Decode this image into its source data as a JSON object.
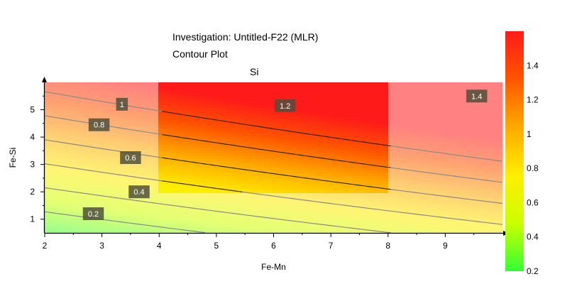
{
  "header": {
    "title_line1": "Investigation: Untitled-F22 (MLR)",
    "title_line2": "Contour Plot"
  },
  "chart_data": {
    "type": "contour",
    "title": "Investigation: Untitled-F22 (MLR) Contour Plot",
    "subtitle": "Si",
    "xlabel": "Fe-Mn",
    "ylabel": "Fe-Si",
    "xlim": [
      2,
      10
    ],
    "ylim": [
      0.5,
      6
    ],
    "x_ticks": [
      2,
      3,
      4,
      5,
      6,
      7,
      8,
      9
    ],
    "y_ticks": [
      1,
      2,
      3,
      4,
      5
    ],
    "contour_levels": [
      0.2,
      0.4,
      0.6,
      0.8,
      1.0,
      1.2,
      1.4
    ],
    "contour_labels": [
      {
        "text": "0.2",
        "x": 2.85,
        "y": 1.2
      },
      {
        "text": "0.4",
        "x": 3.65,
        "y": 2.0
      },
      {
        "text": "0.6",
        "x": 3.5,
        "y": 3.25
      },
      {
        "text": "0.8",
        "x": 2.95,
        "y": 4.45
      },
      {
        "text": "1",
        "x": 3.35,
        "y": 5.2
      },
      {
        "text": "1.2",
        "x": 6.2,
        "y": 5.15
      },
      {
        "text": "1.4",
        "x": 9.55,
        "y": 5.5
      }
    ],
    "highlighted_region": {
      "x_range": [
        4,
        8
      ],
      "y_range": [
        2,
        6
      ]
    },
    "colorbar": {
      "min": 0.2,
      "max": 1.6,
      "ticks": [
        0.2,
        0.4,
        0.6,
        0.8,
        1,
        1.2,
        1.4
      ],
      "colors": [
        "#33ff33",
        "#ccff00",
        "#ffee00",
        "#ffaa00",
        "#ff5500",
        "#ff1a1a"
      ]
    },
    "grid": false,
    "legend": "colorbar-right"
  }
}
